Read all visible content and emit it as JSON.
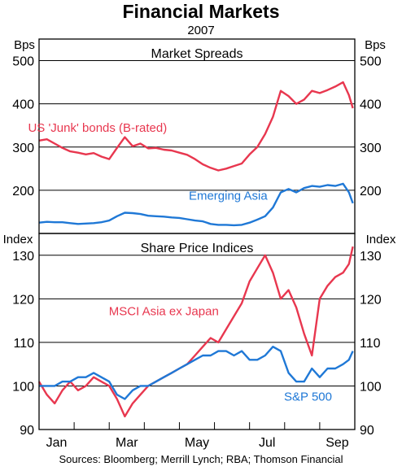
{
  "title": "Financial Markets",
  "subtitle": "2007",
  "source": "Sources: Bloomberg; Merrill Lynch; RBA; Thomson Financial",
  "colors": {
    "red": "#e8374f",
    "blue": "#1f78d6",
    "frame": "#000000",
    "grid": "#000000"
  },
  "chart_data": [
    {
      "type": "line",
      "title": "Market Spreads",
      "ylabel": "Bps",
      "ylim": [
        100,
        550
      ],
      "yticks": [
        200,
        300,
        400,
        500
      ],
      "ytick_labels": [
        "200",
        "300",
        "400",
        "500"
      ],
      "xlim": [
        0,
        8.1
      ],
      "xticks": [
        "Jan",
        "Mar",
        "May",
        "Jul",
        "Sep"
      ],
      "grid": true,
      "series": [
        {
          "name": "US 'Junk' bonds (B-rated)",
          "color": "#e8374f",
          "x": [
            0,
            0.2,
            0.4,
            0.6,
            0.8,
            1.0,
            1.2,
            1.4,
            1.6,
            1.8,
            2.0,
            2.2,
            2.4,
            2.6,
            2.8,
            3.0,
            3.2,
            3.4,
            3.6,
            3.8,
            4.0,
            4.2,
            4.4,
            4.6,
            4.8,
            5.0,
            5.2,
            5.4,
            5.6,
            5.8,
            6.0,
            6.2,
            6.4,
            6.6,
            6.8,
            7.0,
            7.2,
            7.4,
            7.6,
            7.8,
            7.95,
            8.05
          ],
          "values": [
            315,
            318,
            308,
            298,
            290,
            287,
            283,
            286,
            278,
            272,
            298,
            323,
            302,
            308,
            297,
            298,
            294,
            292,
            287,
            282,
            272,
            260,
            252,
            246,
            250,
            256,
            262,
            283,
            300,
            330,
            370,
            430,
            418,
            400,
            410,
            430,
            425,
            432,
            440,
            450,
            420,
            390
          ],
          "label_pos": [
            1.5,
            345
          ]
        },
        {
          "name": "Emerging Asia",
          "color": "#1f78d6",
          "x": [
            0,
            0.2,
            0.4,
            0.6,
            0.8,
            1.0,
            1.2,
            1.4,
            1.6,
            1.8,
            2.0,
            2.2,
            2.4,
            2.6,
            2.8,
            3.0,
            3.2,
            3.4,
            3.6,
            3.8,
            4.0,
            4.2,
            4.4,
            4.6,
            4.8,
            5.0,
            5.2,
            5.4,
            5.6,
            5.8,
            6.0,
            6.2,
            6.4,
            6.6,
            6.8,
            7.0,
            7.2,
            7.4,
            7.6,
            7.8,
            7.95,
            8.05
          ],
          "values": [
            125,
            127,
            126,
            126,
            124,
            122,
            123,
            124,
            126,
            130,
            140,
            148,
            147,
            145,
            141,
            140,
            139,
            137,
            136,
            133,
            130,
            128,
            122,
            120,
            120,
            119,
            120,
            125,
            132,
            140,
            160,
            195,
            203,
            195,
            205,
            210,
            208,
            212,
            210,
            215,
            195,
            170
          ],
          "label_pos": [
            4.85,
            188
          ]
        }
      ]
    },
    {
      "type": "line",
      "title": "Share Price Indices",
      "ylabel": "Index",
      "ylim": [
        90,
        135
      ],
      "yticks": [
        90,
        100,
        110,
        120,
        130
      ],
      "ytick_labels": [
        "90",
        "100",
        "110",
        "120",
        "130"
      ],
      "xlim": [
        0,
        8.1
      ],
      "xticks": [
        "Jan",
        "Mar",
        "May",
        "Jul",
        "Sep"
      ],
      "grid": true,
      "series": [
        {
          "name": "MSCI Asia ex Japan",
          "color": "#e8374f",
          "x": [
            0,
            0.2,
            0.4,
            0.6,
            0.8,
            1.0,
            1.2,
            1.4,
            1.6,
            1.8,
            2.0,
            2.2,
            2.4,
            2.6,
            2.8,
            3.0,
            3.2,
            3.4,
            3.6,
            3.8,
            4.0,
            4.2,
            4.4,
            4.6,
            4.8,
            5.0,
            5.2,
            5.4,
            5.6,
            5.8,
            6.0,
            6.2,
            6.4,
            6.6,
            6.8,
            7.0,
            7.2,
            7.4,
            7.6,
            7.8,
            7.95,
            8.05
          ],
          "values": [
            101,
            98,
            96,
            99,
            101,
            99,
            100,
            102,
            101,
            100,
            97,
            93,
            96,
            98,
            100,
            101,
            102,
            103,
            104,
            105,
            107,
            109,
            111,
            110,
            113,
            116,
            119,
            124,
            127,
            130,
            126,
            120,
            122,
            118,
            112,
            107,
            120,
            123,
            125,
            126,
            128,
            132
          ],
          "label_pos": [
            3.2,
            117.2
          ]
        },
        {
          "name": "S&P 500",
          "color": "#1f78d6",
          "x": [
            0,
            0.2,
            0.4,
            0.6,
            0.8,
            1.0,
            1.2,
            1.4,
            1.6,
            1.8,
            2.0,
            2.2,
            2.4,
            2.6,
            2.8,
            3.0,
            3.2,
            3.4,
            3.6,
            3.8,
            4.0,
            4.2,
            4.4,
            4.6,
            4.8,
            5.0,
            5.2,
            5.4,
            5.6,
            5.8,
            6.0,
            6.2,
            6.4,
            6.6,
            6.8,
            7.0,
            7.2,
            7.4,
            7.6,
            7.8,
            7.95,
            8.05
          ],
          "values": [
            100,
            100,
            100,
            101,
            101,
            102,
            102,
            103,
            102,
            101,
            98,
            97,
            99,
            100,
            100,
            101,
            102,
            103,
            104,
            105,
            106,
            107,
            107,
            108,
            108,
            107,
            108,
            106,
            106,
            107,
            109,
            108,
            103,
            101,
            101,
            104,
            102,
            104,
            104,
            105,
            106,
            108
          ],
          "label_pos": [
            6.9,
            97.6
          ]
        }
      ]
    }
  ]
}
